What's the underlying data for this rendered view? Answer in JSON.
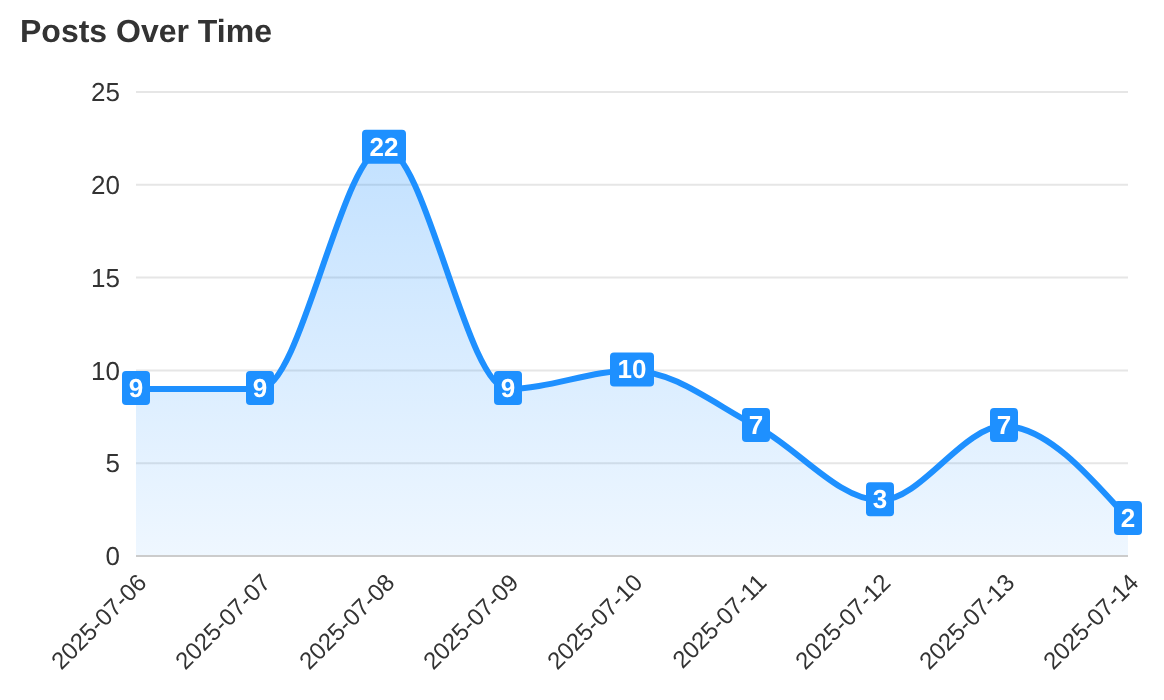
{
  "chart_data": {
    "type": "area",
    "title": "Posts Over Time",
    "categories": [
      "2025-07-06",
      "2025-07-07",
      "2025-07-08",
      "2025-07-09",
      "2025-07-10",
      "2025-07-11",
      "2025-07-12",
      "2025-07-13",
      "2025-07-14"
    ],
    "series": [
      {
        "color": "#1e90ff",
        "values": [
          9,
          9,
          22,
          9,
          10,
          7,
          3,
          7,
          2
        ]
      }
    ],
    "ylim": [
      0,
      25
    ],
    "yticks": [
      0,
      5,
      10,
      15,
      20,
      25
    ],
    "grid": "y",
    "data_labels": true
  }
}
